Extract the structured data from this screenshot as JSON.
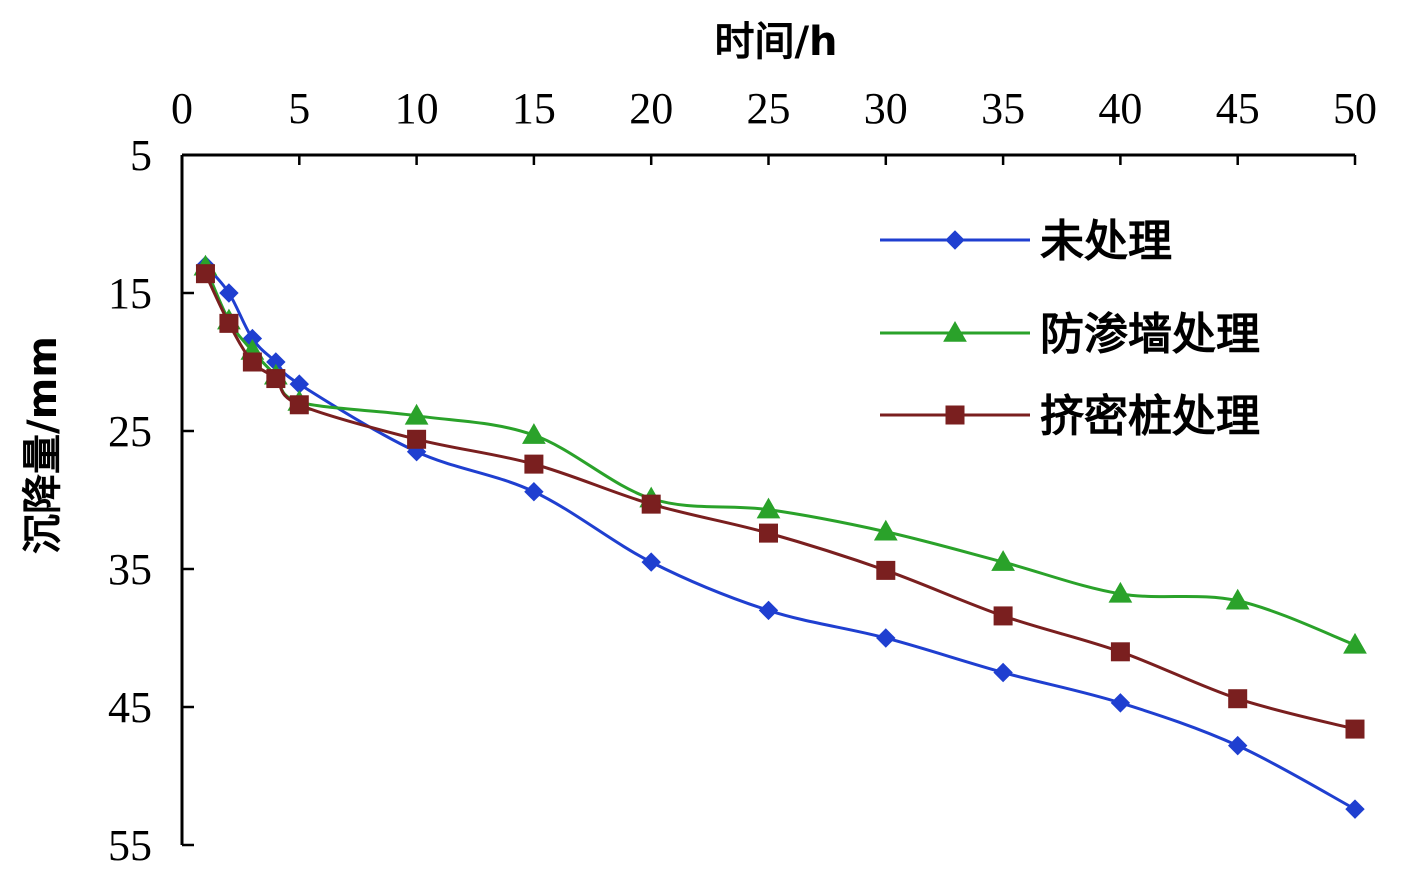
{
  "chart_data": {
    "type": "line",
    "title": "",
    "xlabel": "时间/h",
    "ylabel": "沉降量/mm",
    "x_axis_position": "top",
    "y_axis_inverted": true,
    "xlim": [
      0,
      50
    ],
    "ylim": [
      5,
      55
    ],
    "x_ticks": [
      0,
      5,
      10,
      15,
      20,
      25,
      30,
      35,
      40,
      45,
      50
    ],
    "y_ticks": [
      5,
      15,
      25,
      35,
      45,
      55
    ],
    "grid": false,
    "legend_position": "top-right",
    "series": [
      {
        "name": "未处理",
        "color": "#1f3fd0",
        "marker": "diamond",
        "x": [
          1,
          2,
          3,
          4,
          5,
          10,
          15,
          20,
          25,
          30,
          35,
          40,
          45,
          50
        ],
        "y": [
          13,
          15,
          18.3,
          20,
          21.6,
          26.5,
          29.4,
          34.5,
          38,
          40,
          42.5,
          44.7,
          47.8,
          52.4
        ]
      },
      {
        "name": "防渗墙处理",
        "color": "#2aa22a",
        "marker": "triangle",
        "x": [
          1,
          2,
          3,
          4,
          5,
          10,
          15,
          20,
          25,
          30,
          35,
          40,
          45,
          50
        ],
        "y": [
          13.1,
          17,
          19.2,
          21,
          22.9,
          23.9,
          25.3,
          29.9,
          30.7,
          32.3,
          34.5,
          36.8,
          37.3,
          40.5
        ]
      },
      {
        "name": "挤密桩处理",
        "color": "#7a1f1f",
        "marker": "square",
        "x": [
          1,
          2,
          3,
          4,
          5,
          10,
          15,
          20,
          25,
          30,
          35,
          40,
          45,
          50
        ],
        "y": [
          13.6,
          17.2,
          20,
          21.2,
          23.1,
          25.6,
          27.4,
          30.3,
          32.4,
          35.1,
          38.4,
          41,
          44.4,
          46.6
        ]
      }
    ]
  }
}
